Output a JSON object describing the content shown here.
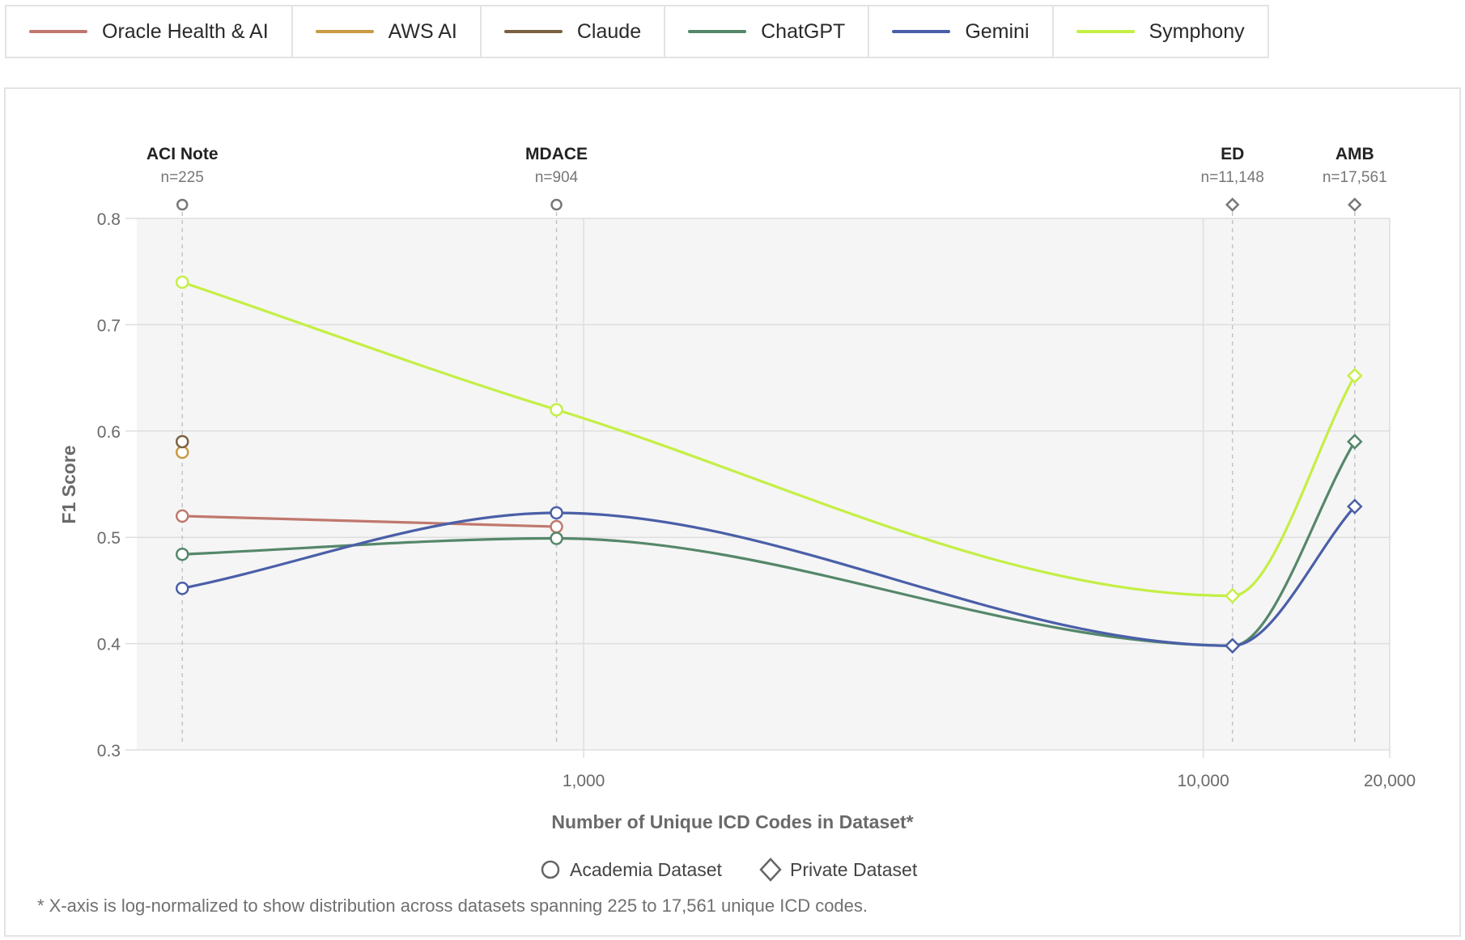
{
  "legend": [
    {
      "name": "Oracle Health & AI",
      "color": "#c0786e"
    },
    {
      "name": "AWS AI",
      "color": "#c99b45"
    },
    {
      "name": "Claude",
      "color": "#7a6242"
    },
    {
      "name": "ChatGPT",
      "color": "#55876a"
    },
    {
      "name": "Gemini",
      "color": "#4a5fa8"
    },
    {
      "name": "Symphony",
      "color": "#c4ef45"
    }
  ],
  "shape_legend": {
    "circle_label": "Academia Dataset",
    "diamond_label": "Private Dataset"
  },
  "footnote": "* X-axis is log-normalized to show distribution across datasets spanning 225 to 17,561 unique ICD codes.",
  "chart_data": {
    "type": "line",
    "xlabel": "Number of Unique ICD Codes in Dataset*",
    "ylabel": "F1 Score",
    "xscale": "log",
    "xlim": [
      190,
      20000
    ],
    "ylim": [
      0.3,
      0.8
    ],
    "y_ticks": [
      {
        "value": 0.3,
        "label": "0.3"
      },
      {
        "value": 0.4,
        "label": "0.4"
      },
      {
        "value": 0.5,
        "label": "0.5"
      },
      {
        "value": 0.6,
        "label": "0.6"
      },
      {
        "value": 0.7,
        "label": "0.7"
      },
      {
        "value": 0.8,
        "label": "0.8"
      }
    ],
    "x_ticks": [
      {
        "value": 1000,
        "label": "1,000"
      },
      {
        "value": 10000,
        "label": "10,000"
      },
      {
        "value": 20000,
        "label": "20,000"
      }
    ],
    "grid": true,
    "datasets": [
      {
        "name": "ACI Note",
        "count_label": "n=225",
        "x": 225,
        "kind": "academia"
      },
      {
        "name": "MDACE",
        "count_label": "n=904",
        "x": 904,
        "kind": "academia"
      },
      {
        "name": "ED",
        "count_label": "n=11,148",
        "x": 11148,
        "kind": "private"
      },
      {
        "name": "AMB",
        "count_label": "n=17,561",
        "x": 17561,
        "kind": "private"
      }
    ],
    "series": [
      {
        "name": "Oracle Health & AI",
        "color": "#c0786e",
        "values": [
          0.52,
          0.51,
          null,
          null
        ]
      },
      {
        "name": "AWS AI",
        "color": "#c99b45",
        "values": [
          0.58,
          null,
          null,
          null
        ]
      },
      {
        "name": "Claude",
        "color": "#7a6242",
        "values": [
          0.59,
          null,
          null,
          null
        ]
      },
      {
        "name": "ChatGPT",
        "color": "#55876a",
        "values": [
          0.484,
          0.499,
          0.398,
          0.59
        ]
      },
      {
        "name": "Gemini",
        "color": "#4a5fa8",
        "values": [
          0.452,
          0.523,
          0.398,
          0.529
        ]
      },
      {
        "name": "Symphony",
        "color": "#c4ef45",
        "values": [
          0.74,
          0.62,
          0.445,
          0.652
        ]
      }
    ]
  }
}
